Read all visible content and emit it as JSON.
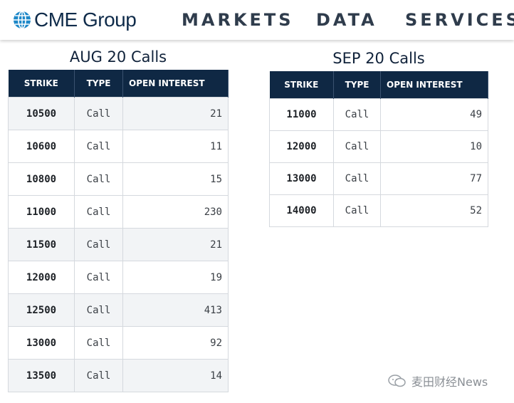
{
  "header": {
    "logo_text": "CME Group",
    "nav": [
      "MARKETS",
      "DATA",
      "SERVICES"
    ]
  },
  "tables": [
    {
      "title": "AUG 20 Calls",
      "columns": [
        "STRIKE",
        "TYPE",
        "OPEN INTEREST"
      ],
      "rows": [
        {
          "strike": "10500",
          "type": "Call",
          "oi": "21"
        },
        {
          "strike": "10600",
          "type": "Call",
          "oi": "11"
        },
        {
          "strike": "10800",
          "type": "Call",
          "oi": "15"
        },
        {
          "strike": "11000",
          "type": "Call",
          "oi": "230"
        },
        {
          "strike": "11500",
          "type": "Call",
          "oi": "21"
        },
        {
          "strike": "12000",
          "type": "Call",
          "oi": "19"
        },
        {
          "strike": "12500",
          "type": "Call",
          "oi": "413"
        },
        {
          "strike": "13000",
          "type": "Call",
          "oi": "92"
        },
        {
          "strike": "13500",
          "type": "Call",
          "oi": "14"
        }
      ]
    },
    {
      "title": "SEP 20 Calls",
      "columns": [
        "STRIKE",
        "TYPE",
        "OPEN INTEREST"
      ],
      "rows": [
        {
          "strike": "11000",
          "type": "Call",
          "oi": "49"
        },
        {
          "strike": "12000",
          "type": "Call",
          "oi": "10"
        },
        {
          "strike": "13000",
          "type": "Call",
          "oi": "77"
        },
        {
          "strike": "14000",
          "type": "Call",
          "oi": "52"
        }
      ]
    }
  ],
  "watermark": {
    "text": "麦田财经News"
  },
  "colors": {
    "header_bg": "#0f2844",
    "logo_blue": "#1e88c8",
    "shade": "#f2f4f6"
  }
}
